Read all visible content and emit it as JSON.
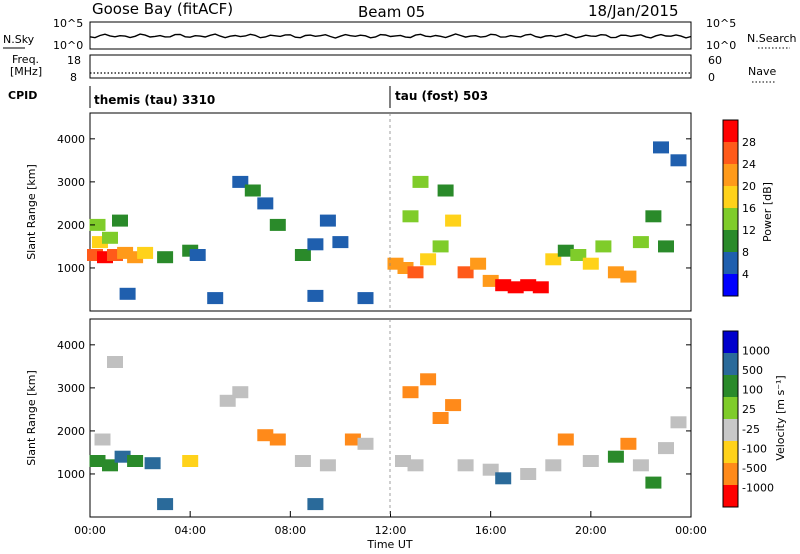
{
  "header": {
    "station": "Goose Bay (fitACF)",
    "beam": "Beam 05",
    "date": "18/Jan/2015"
  },
  "strip_labels": {
    "nsky": "N.Sky",
    "nsky_ticks": [
      "10^5",
      "10^0"
    ],
    "nsearch": "N.Search",
    "nsearch_ticks": [
      "10^5",
      "10^0"
    ],
    "freq_line1": "Freq.",
    "freq_line2": "[MHz]",
    "freq_ticks": [
      "18",
      "8"
    ],
    "nave": "Nave",
    "nave_ticks": [
      "60",
      "0"
    ],
    "cpid": "CPID",
    "cpid_modes": [
      {
        "label": "themis (tau) 3310",
        "start_hour": 0
      },
      {
        "label": "tau (fost) 503",
        "start_hour": 12
      }
    ]
  },
  "colors": {
    "power_scale": [
      "#0000ff",
      "#1f5fae",
      "#2a8a2a",
      "#7fcc2a",
      "#ffd21a",
      "#ff9a1a",
      "#ff5a1a",
      "#ff0000"
    ],
    "velocity_scale": [
      "#0000cc",
      "#2a6a9a",
      "#2a8a2a",
      "#7fcc2a",
      "#c8c8c8",
      "#ffd21a",
      "#ff8a1a",
      "#ff0000"
    ],
    "ground_scatter": "#c0c0c0"
  },
  "chart_data": [
    {
      "type": "heatmap",
      "name": "power",
      "xlabel": "",
      "ylabel": "Slant Range [km]",
      "xlim": [
        0,
        24
      ],
      "ylim": [
        0,
        4600
      ],
      "yticks": [
        "1000",
        "2000",
        "3000",
        "4000"
      ],
      "ytick_values": [
        1000,
        2000,
        3000,
        4000
      ],
      "colorbar_label": "Power [dB]",
      "colorbar_ticks": [
        "4",
        "8",
        "12",
        "16",
        "20",
        "24",
        "28"
      ],
      "colorbar_range": [
        0,
        32
      ],
      "cells": [
        {
          "t": 0.2,
          "r": 1300,
          "v": 26
        },
        {
          "t": 0.6,
          "r": 1250,
          "v": 28
        },
        {
          "t": 1.0,
          "r": 1300,
          "v": 24
        },
        {
          "t": 1.4,
          "r": 1350,
          "v": 22
        },
        {
          "t": 1.8,
          "r": 1250,
          "v": 20
        },
        {
          "t": 0.4,
          "r": 1600,
          "v": 18
        },
        {
          "t": 0.8,
          "r": 1700,
          "v": 14
        },
        {
          "t": 1.2,
          "r": 2100,
          "v": 8
        },
        {
          "t": 0.3,
          "r": 2000,
          "v": 12
        },
        {
          "t": 2.2,
          "r": 1350,
          "v": 16
        },
        {
          "t": 3.0,
          "r": 1250,
          "v": 8
        },
        {
          "t": 4.0,
          "r": 1400,
          "v": 10
        },
        {
          "t": 4.3,
          "r": 1300,
          "v": 6
        },
        {
          "t": 6.0,
          "r": 3000,
          "v": 6
        },
        {
          "t": 6.5,
          "r": 2800,
          "v": 8
        },
        {
          "t": 7.0,
          "r": 2500,
          "v": 6
        },
        {
          "t": 7.5,
          "r": 2000,
          "v": 8
        },
        {
          "t": 8.5,
          "r": 1300,
          "v": 8
        },
        {
          "t": 9.0,
          "r": 1550,
          "v": 6
        },
        {
          "t": 9.5,
          "r": 2100,
          "v": 4
        },
        {
          "t": 10.0,
          "r": 1600,
          "v": 6
        },
        {
          "t": 12.2,
          "r": 1100,
          "v": 20
        },
        {
          "t": 12.6,
          "r": 1000,
          "v": 22
        },
        {
          "t": 13.0,
          "r": 900,
          "v": 24
        },
        {
          "t": 13.5,
          "r": 1200,
          "v": 18
        },
        {
          "t": 14.0,
          "r": 1500,
          "v": 14
        },
        {
          "t": 14.5,
          "r": 2100,
          "v": 16
        },
        {
          "t": 15.0,
          "r": 900,
          "v": 26
        },
        {
          "t": 15.5,
          "r": 1100,
          "v": 22
        },
        {
          "t": 16.0,
          "r": 700,
          "v": 20
        },
        {
          "t": 16.5,
          "r": 600,
          "v": 28
        },
        {
          "t": 17.0,
          "r": 550,
          "v": 28
        },
        {
          "t": 17.5,
          "r": 600,
          "v": 28
        },
        {
          "t": 18.0,
          "r": 550,
          "v": 28
        },
        {
          "t": 18.5,
          "r": 1200,
          "v": 16
        },
        {
          "t": 19.0,
          "r": 1400,
          "v": 10
        },
        {
          "t": 19.5,
          "r": 1300,
          "v": 14
        },
        {
          "t": 20.0,
          "r": 1100,
          "v": 18
        },
        {
          "t": 20.5,
          "r": 1500,
          "v": 12
        },
        {
          "t": 21.0,
          "r": 900,
          "v": 20
        },
        {
          "t": 21.5,
          "r": 800,
          "v": 22
        },
        {
          "t": 22.0,
          "r": 1600,
          "v": 12
        },
        {
          "t": 22.5,
          "r": 2200,
          "v": 10
        },
        {
          "t": 23.0,
          "r": 1500,
          "v": 8
        },
        {
          "t": 23.5,
          "r": 3500,
          "v": 4
        },
        {
          "t": 13.2,
          "r": 3000,
          "v": 12
        },
        {
          "t": 14.2,
          "r": 2800,
          "v": 10
        },
        {
          "t": 12.8,
          "r": 2200,
          "v": 14
        },
        {
          "t": 22.8,
          "r": 3800,
          "v": 6
        },
        {
          "t": 1.5,
          "r": 400,
          "v": 4
        },
        {
          "t": 5.0,
          "r": 300,
          "v": 4
        },
        {
          "t": 9.0,
          "r": 350,
          "v": 4
        },
        {
          "t": 11.0,
          "r": 300,
          "v": 4
        }
      ]
    },
    {
      "type": "heatmap",
      "name": "velocity",
      "xlabel": "Time UT",
      "ylabel": "Slant Range [km]",
      "xlim": [
        0,
        24
      ],
      "ylim": [
        0,
        4600
      ],
      "xticks": [
        "00:00",
        "04:00",
        "08:00",
        "12:00",
        "16:00",
        "20:00",
        "00:00"
      ],
      "xtick_values": [
        0,
        4,
        8,
        12,
        16,
        20,
        24
      ],
      "yticks": [
        "1000",
        "2000",
        "3000",
        "4000"
      ],
      "ytick_values": [
        1000,
        2000,
        3000,
        4000
      ],
      "colorbar_label": "Velocity [m s⁻¹]",
      "colorbar_ticks": [
        "1000",
        "500",
        "100",
        "25",
        "-25",
        "-100",
        "-500",
        "-1000"
      ],
      "cells": [
        {
          "t": 0.3,
          "r": 1300,
          "v": 60
        },
        {
          "t": 0.8,
          "r": 1200,
          "v": 80
        },
        {
          "t": 1.3,
          "r": 1400,
          "v": 150
        },
        {
          "t": 1.8,
          "r": 1300,
          "v": 40
        },
        {
          "t": 0.5,
          "r": 1800,
          "v": 0
        },
        {
          "t": 2.5,
          "r": 1250,
          "v": 200
        },
        {
          "t": 4.0,
          "r": 1300,
          "v": -50
        },
        {
          "t": 5.5,
          "r": 2700,
          "v": 0
        },
        {
          "t": 6.0,
          "r": 2900,
          "v": 0
        },
        {
          "t": 7.0,
          "r": 1900,
          "v": -200
        },
        {
          "t": 7.5,
          "r": 1800,
          "v": -150
        },
        {
          "t": 8.5,
          "r": 1300,
          "v": 0
        },
        {
          "t": 9.5,
          "r": 1200,
          "v": 0
        },
        {
          "t": 10.5,
          "r": 1800,
          "v": -300
        },
        {
          "t": 11.0,
          "r": 1700,
          "v": 0
        },
        {
          "t": 12.5,
          "r": 1300,
          "v": 0
        },
        {
          "t": 13.0,
          "r": 1200,
          "v": 0
        },
        {
          "t": 13.5,
          "r": 3200,
          "v": -200
        },
        {
          "t": 14.0,
          "r": 2300,
          "v": -150
        },
        {
          "t": 14.5,
          "r": 2600,
          "v": -300
        },
        {
          "t": 15.0,
          "r": 1200,
          "v": 0
        },
        {
          "t": 16.0,
          "r": 1100,
          "v": 0
        },
        {
          "t": 16.5,
          "r": 900,
          "v": 150
        },
        {
          "t": 17.5,
          "r": 1000,
          "v": 0
        },
        {
          "t": 18.5,
          "r": 1200,
          "v": 0
        },
        {
          "t": 19.0,
          "r": 1800,
          "v": -150
        },
        {
          "t": 20.0,
          "r": 1300,
          "v": 0
        },
        {
          "t": 21.0,
          "r": 1400,
          "v": 80
        },
        {
          "t": 21.5,
          "r": 1700,
          "v": -100
        },
        {
          "t": 22.0,
          "r": 1200,
          "v": 0
        },
        {
          "t": 22.5,
          "r": 800,
          "v": 100
        },
        {
          "t": 23.0,
          "r": 1600,
          "v": 0
        },
        {
          "t": 23.5,
          "r": 2200,
          "v": 0
        },
        {
          "t": 12.8,
          "r": 2900,
          "v": -250
        },
        {
          "t": 1.0,
          "r": 3600,
          "v": 0
        },
        {
          "t": 3.0,
          "r": 300,
          "v": 150
        },
        {
          "t": 9.0,
          "r": 300,
          "v": 200
        }
      ]
    }
  ]
}
